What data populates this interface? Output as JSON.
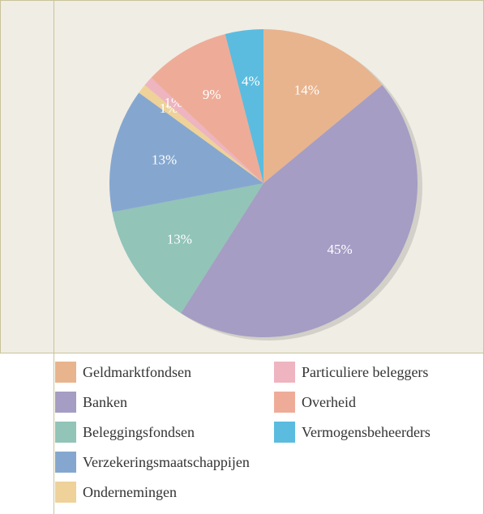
{
  "chart_data": {
    "type": "pie",
    "categories": [
      "Geldmarktfondsen",
      "Banken",
      "Beleggingsfondsen",
      "Verzekeringsmaatschappijen",
      "Ondernemingen",
      "Particuliere beleggers",
      "Overheid",
      "Vermogensbeheerders"
    ],
    "values": [
      14,
      45,
      13,
      13,
      1,
      1,
      9,
      4
    ],
    "value_labels": [
      "14%",
      "45%",
      "13%",
      "13%",
      "1%",
      "1%",
      "9%",
      "4%"
    ],
    "colors": [
      "#e8b48e",
      "#a59dc4",
      "#92c4b8",
      "#85a7cf",
      "#eed29a",
      "#eeb4c0",
      "#eeac98",
      "#5bbcdf"
    ]
  }
}
